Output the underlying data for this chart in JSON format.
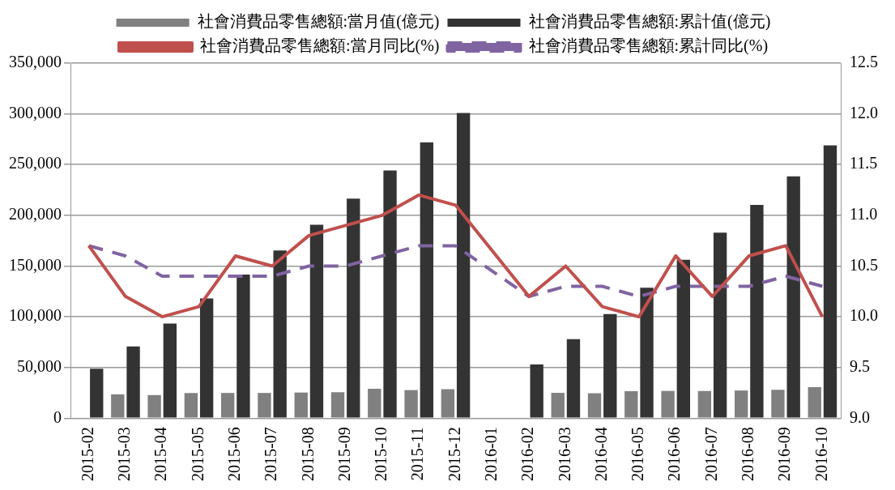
{
  "chart_data": {
    "type": "bar",
    "categories": [
      "2015-02",
      "2015-03",
      "2015-04",
      "2015-05",
      "2015-06",
      "2015-07",
      "2015-08",
      "2015-09",
      "2015-10",
      "2015-11",
      "2015-12",
      "2016-01",
      "2016-02",
      "2016-03",
      "2016-04",
      "2016-05",
      "2016-06",
      "2016-07",
      "2016-08",
      "2016-09",
      "2016-10"
    ],
    "series": [
      {
        "name": "社會消費品零售總額:當月值(億元)",
        "color": "#808080",
        "values": [
          null,
          23500,
          22800,
          24800,
          24900,
          24900,
          25300,
          25600,
          29000,
          27700,
          28600,
          null,
          null,
          25000,
          24600,
          26600,
          26900,
          26800,
          27300,
          28000,
          30600
        ]
      },
      {
        "name": "社會消費品零售總額:累計值(億元)",
        "color": "#333333",
        "values": [
          48700,
          70700,
          93200,
          118100,
          141600,
          165400,
          190700,
          216400,
          244300,
          272000,
          300900,
          null,
          52900,
          78000,
          102600,
          128700,
          156100,
          182900,
          210300,
          238500,
          269000
        ]
      },
      {
        "name": "社會消費品零售總額:當月同比(%)",
        "type": "line",
        "axis": "y2",
        "color": "#c0504d",
        "line_style": "solid",
        "values": [
          10.7,
          10.2,
          10.0,
          10.1,
          10.6,
          10.5,
          10.8,
          10.9,
          11.0,
          11.2,
          11.1,
          null,
          10.2,
          10.5,
          10.1,
          10.0,
          10.6,
          10.2,
          10.6,
          10.7,
          10.0
        ]
      },
      {
        "name": "社會消費品零售總額:累計同比(%)",
        "type": "line",
        "axis": "y2",
        "color": "#8064a2",
        "line_style": "dashed",
        "values": [
          10.7,
          10.6,
          10.4,
          10.4,
          10.4,
          10.4,
          10.5,
          10.5,
          10.6,
          10.7,
          10.7,
          null,
          10.2,
          10.3,
          10.3,
          10.2,
          10.3,
          10.3,
          10.3,
          10.4,
          10.3
        ]
      }
    ],
    "ylim": [
      0,
      350000
    ],
    "yticks": [
      {
        "value": 0,
        "label": "0"
      },
      {
        "value": 50000,
        "label": "50,000"
      },
      {
        "value": 100000,
        "label": "100,000"
      },
      {
        "value": 150000,
        "label": "150,000"
      },
      {
        "value": 200000,
        "label": "200,000"
      },
      {
        "value": 250000,
        "label": "250,000"
      },
      {
        "value": 300000,
        "label": "300,000"
      },
      {
        "value": 350000,
        "label": "350,000"
      }
    ],
    "y2lim": [
      9.0,
      12.5
    ],
    "y2ticks": [
      {
        "value": 9,
        "label": "9.0"
      },
      {
        "value": 9.5,
        "label": "9.5"
      },
      {
        "value": 10,
        "label": "10.0"
      },
      {
        "value": 10.5,
        "label": "10.5"
      },
      {
        "value": 11,
        "label": "11.0"
      },
      {
        "value": 11.5,
        "label": "11.5"
      },
      {
        "value": 12,
        "label": "12.0"
      },
      {
        "value": 12.5,
        "label": "12.5"
      }
    ],
    "grid": "y",
    "legend": "top",
    "marker": "none"
  }
}
